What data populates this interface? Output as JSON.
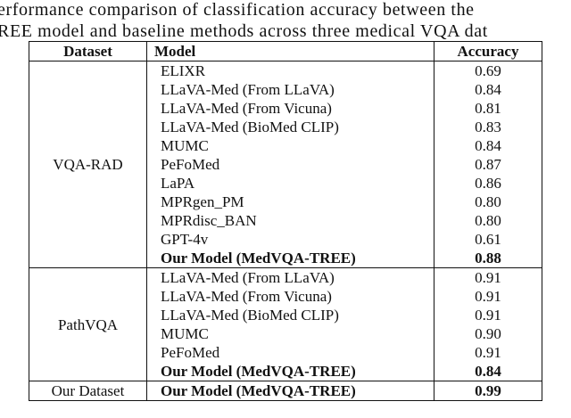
{
  "caption": [
    "erformance comparison of classification accuracy between the",
    "REE model and baseline methods across three medical VQA dat"
  ],
  "table": {
    "header": [
      "Dataset",
      "Model",
      "Accuracy"
    ],
    "groups": [
      {
        "dataset": "VQA-RAD",
        "rows": [
          {
            "model": "ELIXR",
            "accuracy": "0.69"
          },
          {
            "model": "LLaVA-Med (From LLaVA)",
            "accuracy": "0.84"
          },
          {
            "model": "LLaVA-Med (From Vicuna)",
            "accuracy": "0.81"
          },
          {
            "model": "LLaVA-Med (BioMed CLIP)",
            "accuracy": "0.83"
          },
          {
            "model": "MUMC",
            "accuracy": "0.84"
          },
          {
            "model": "PeFoMed",
            "accuracy": "0.87"
          },
          {
            "model": "LaPA",
            "accuracy": "0.86"
          },
          {
            "model": "MPRgen_PM",
            "accuracy": "0.80"
          },
          {
            "model": "MPRdisc_BAN",
            "accuracy": "0.80"
          },
          {
            "model": "GPT-4v",
            "accuracy": "0.61"
          },
          {
            "model": "Our Model (MedVQA-TREE)",
            "accuracy": "0.88",
            "bold": true
          }
        ]
      },
      {
        "dataset": "PathVQA",
        "rows": [
          {
            "model": "LLaVA-Med (From LLaVA)",
            "accuracy": "0.91"
          },
          {
            "model": "LLaVA-Med (From Vicuna)",
            "accuracy": "0.91"
          },
          {
            "model": "LLaVA-Med (BioMed CLIP)",
            "accuracy": "0.91"
          },
          {
            "model": "MUMC",
            "accuracy": "0.90"
          },
          {
            "model": "PeFoMed",
            "accuracy": "0.91"
          },
          {
            "model": "Our Model (MedVQA-TREE)",
            "accuracy": "0.84",
            "bold": true
          }
        ]
      },
      {
        "dataset": "Our Dataset",
        "rows": [
          {
            "model": "Our Model (MedVQA-TREE)",
            "accuracy": "0.99",
            "bold": true
          }
        ]
      }
    ]
  }
}
